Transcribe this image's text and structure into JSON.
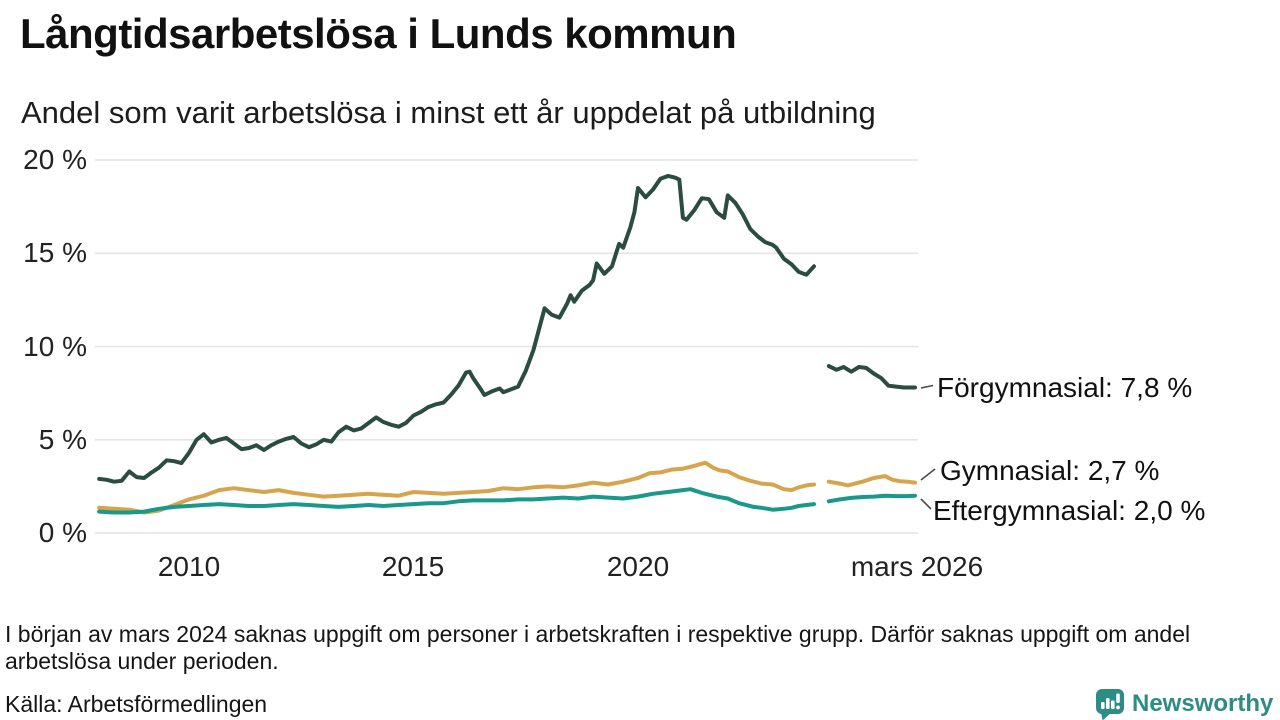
{
  "title": "Långtidsarbetslösa i Lunds kommun",
  "subtitle": "Andel som varit arbetslösa i minst ett år uppdelat på utbildning",
  "footnote": "I början av mars 2024 saknas uppgift om personer i arbetskraften i respektive grupp. Därför saknas uppgift om andel arbetslösa under perioden.",
  "source": "Källa: Arbetsförmedlingen",
  "logo": {
    "text": "Newsworthy",
    "color": "#2d8c83",
    "icon": "bar-chart-speech-bubble"
  },
  "colors": {
    "forgymnasial": "#2b4c41",
    "gymnasial": "#d7a44e",
    "eftergymnasial": "#18998b",
    "gridline": "#e4e4e4",
    "text": "#151515"
  },
  "chart_data": {
    "type": "line",
    "title": "Långtidsarbetslösa i Lunds kommun",
    "subtitle": "Andel som varit arbetslösa i minst ett år uppdelat på utbildning",
    "xlabel": "",
    "ylabel": "",
    "ylim": [
      0,
      20
    ],
    "xlim": [
      2008,
      2026.25
    ],
    "grid": "horizontal",
    "legend_position": "right-end-labels",
    "gap_note": "no data around mars 2024 (break in all series)",
    "yticks": [
      "0 %",
      "5 %",
      "10 %",
      "15 %",
      "20 %"
    ],
    "ytick_values": [
      0,
      5,
      10,
      15,
      20
    ],
    "xticks": [
      "2010",
      "2015",
      "2020",
      "mars 2026"
    ],
    "xtick_values": [
      2010,
      2015,
      2020,
      2026.17
    ],
    "series": [
      {
        "id": "forgymnasial",
        "name": "Förgymnasial",
        "label": "Förgymnasial: 7,8 %",
        "end_value": "7,8 %",
        "color": "#2b4c41",
        "segments": [
          [
            [
              2008.0,
              2.9
            ],
            [
              2008.17,
              2.85
            ],
            [
              2008.33,
              2.75
            ],
            [
              2008.5,
              2.8
            ],
            [
              2008.67,
              3.3
            ],
            [
              2008.83,
              3.0
            ],
            [
              2009.0,
              2.95
            ],
            [
              2009.17,
              3.25
            ],
            [
              2009.33,
              3.5
            ],
            [
              2009.5,
              3.9
            ],
            [
              2009.67,
              3.85
            ],
            [
              2009.83,
              3.75
            ],
            [
              2010.0,
              4.3
            ],
            [
              2010.17,
              5.0
            ],
            [
              2010.33,
              5.3
            ],
            [
              2010.5,
              4.85
            ],
            [
              2010.67,
              5.0
            ],
            [
              2010.83,
              5.1
            ],
            [
              2011.0,
              4.8
            ],
            [
              2011.17,
              4.5
            ],
            [
              2011.33,
              4.55
            ],
            [
              2011.5,
              4.7
            ],
            [
              2011.67,
              4.45
            ],
            [
              2011.83,
              4.7
            ],
            [
              2012.0,
              4.9
            ],
            [
              2012.17,
              5.05
            ],
            [
              2012.33,
              5.15
            ],
            [
              2012.5,
              4.8
            ],
            [
              2012.67,
              4.6
            ],
            [
              2012.83,
              4.75
            ],
            [
              2013.0,
              5.0
            ],
            [
              2013.17,
              4.9
            ],
            [
              2013.33,
              5.4
            ],
            [
              2013.5,
              5.7
            ],
            [
              2013.67,
              5.5
            ],
            [
              2013.83,
              5.6
            ],
            [
              2014.0,
              5.9
            ],
            [
              2014.17,
              6.2
            ],
            [
              2014.33,
              5.95
            ],
            [
              2014.5,
              5.8
            ],
            [
              2014.67,
              5.7
            ],
            [
              2014.83,
              5.9
            ],
            [
              2015.0,
              6.3
            ],
            [
              2015.17,
              6.5
            ],
            [
              2015.33,
              6.75
            ],
            [
              2015.5,
              6.9
            ],
            [
              2015.67,
              7.0
            ],
            [
              2015.83,
              7.4
            ],
            [
              2016.0,
              7.9
            ],
            [
              2016.17,
              8.6
            ],
            [
              2016.25,
              8.65
            ],
            [
              2016.33,
              8.3
            ],
            [
              2016.5,
              7.7
            ],
            [
              2016.58,
              7.4
            ],
            [
              2016.75,
              7.6
            ],
            [
              2016.92,
              7.75
            ],
            [
              2017.0,
              7.55
            ],
            [
              2017.17,
              7.7
            ],
            [
              2017.33,
              7.85
            ],
            [
              2017.5,
              8.7
            ],
            [
              2017.67,
              9.8
            ],
            [
              2017.83,
              11.25
            ],
            [
              2017.92,
              12.05
            ],
            [
              2018.08,
              11.7
            ],
            [
              2018.25,
              11.55
            ],
            [
              2018.42,
              12.3
            ],
            [
              2018.5,
              12.75
            ],
            [
              2018.58,
              12.4
            ],
            [
              2018.75,
              13.0
            ],
            [
              2018.92,
              13.3
            ],
            [
              2019.0,
              13.55
            ],
            [
              2019.08,
              14.45
            ],
            [
              2019.25,
              13.9
            ],
            [
              2019.42,
              14.3
            ],
            [
              2019.5,
              14.9
            ],
            [
              2019.58,
              15.5
            ],
            [
              2019.67,
              15.3
            ],
            [
              2019.83,
              16.4
            ],
            [
              2019.92,
              17.2
            ],
            [
              2020.0,
              18.5
            ],
            [
              2020.17,
              18.0
            ],
            [
              2020.33,
              18.4
            ],
            [
              2020.5,
              19.0
            ],
            [
              2020.67,
              19.15
            ],
            [
              2020.83,
              19.05
            ],
            [
              2020.92,
              18.95
            ],
            [
              2021.0,
              16.9
            ],
            [
              2021.08,
              16.8
            ],
            [
              2021.25,
              17.3
            ],
            [
              2021.42,
              17.95
            ],
            [
              2021.58,
              17.9
            ],
            [
              2021.75,
              17.2
            ],
            [
              2021.92,
              16.9
            ],
            [
              2022.0,
              18.1
            ],
            [
              2022.17,
              17.7
            ],
            [
              2022.33,
              17.1
            ],
            [
              2022.5,
              16.3
            ],
            [
              2022.67,
              15.9
            ],
            [
              2022.83,
              15.6
            ],
            [
              2023.0,
              15.45
            ],
            [
              2023.08,
              15.3
            ],
            [
              2023.25,
              14.7
            ],
            [
              2023.42,
              14.4
            ],
            [
              2023.58,
              14.0
            ],
            [
              2023.75,
              13.85
            ],
            [
              2023.92,
              14.3
            ]
          ],
          [
            [
              2024.25,
              8.95
            ],
            [
              2024.42,
              8.75
            ],
            [
              2024.58,
              8.9
            ],
            [
              2024.75,
              8.65
            ],
            [
              2024.92,
              8.9
            ],
            [
              2025.08,
              8.85
            ],
            [
              2025.25,
              8.55
            ],
            [
              2025.42,
              8.3
            ],
            [
              2025.58,
              7.9
            ],
            [
              2025.75,
              7.85
            ],
            [
              2025.92,
              7.8
            ],
            [
              2026.17,
              7.8
            ]
          ]
        ]
      },
      {
        "id": "gymnasial",
        "name": "Gymnasial",
        "label": "Gymnasial: 2,7 %",
        "end_value": "2,7 %",
        "color": "#d7a44e",
        "segments": [
          [
            [
              2008.0,
              1.35
            ],
            [
              2008.33,
              1.3
            ],
            [
              2008.67,
              1.25
            ],
            [
              2009.0,
              1.1
            ],
            [
              2009.33,
              1.2
            ],
            [
              2009.67,
              1.5
            ],
            [
              2010.0,
              1.8
            ],
            [
              2010.33,
              2.0
            ],
            [
              2010.67,
              2.3
            ],
            [
              2011.0,
              2.4
            ],
            [
              2011.33,
              2.3
            ],
            [
              2011.67,
              2.2
            ],
            [
              2012.0,
              2.3
            ],
            [
              2012.33,
              2.15
            ],
            [
              2012.67,
              2.05
            ],
            [
              2013.0,
              1.95
            ],
            [
              2013.33,
              2.0
            ],
            [
              2013.67,
              2.05
            ],
            [
              2014.0,
              2.1
            ],
            [
              2014.33,
              2.05
            ],
            [
              2014.67,
              2.0
            ],
            [
              2015.0,
              2.2
            ],
            [
              2015.33,
              2.15
            ],
            [
              2015.67,
              2.1
            ],
            [
              2016.0,
              2.15
            ],
            [
              2016.33,
              2.2
            ],
            [
              2016.67,
              2.25
            ],
            [
              2017.0,
              2.4
            ],
            [
              2017.33,
              2.35
            ],
            [
              2017.67,
              2.45
            ],
            [
              2018.0,
              2.5
            ],
            [
              2018.33,
              2.45
            ],
            [
              2018.67,
              2.55
            ],
            [
              2019.0,
              2.7
            ],
            [
              2019.33,
              2.6
            ],
            [
              2019.67,
              2.75
            ],
            [
              2020.0,
              2.95
            ],
            [
              2020.25,
              3.2
            ],
            [
              2020.5,
              3.25
            ],
            [
              2020.75,
              3.4
            ],
            [
              2021.0,
              3.45
            ],
            [
              2021.25,
              3.6
            ],
            [
              2021.5,
              3.77
            ],
            [
              2021.67,
              3.5
            ],
            [
              2021.83,
              3.35
            ],
            [
              2022.0,
              3.3
            ],
            [
              2022.25,
              3.0
            ],
            [
              2022.5,
              2.8
            ],
            [
              2022.75,
              2.65
            ],
            [
              2023.0,
              2.6
            ],
            [
              2023.25,
              2.35
            ],
            [
              2023.42,
              2.3
            ],
            [
              2023.58,
              2.45
            ],
            [
              2023.75,
              2.55
            ],
            [
              2023.92,
              2.6
            ]
          ],
          [
            [
              2024.25,
              2.75
            ],
            [
              2024.5,
              2.65
            ],
            [
              2024.67,
              2.55
            ],
            [
              2024.83,
              2.65
            ],
            [
              2025.0,
              2.75
            ],
            [
              2025.25,
              2.95
            ],
            [
              2025.5,
              3.05
            ],
            [
              2025.67,
              2.85
            ],
            [
              2025.83,
              2.78
            ],
            [
              2026.0,
              2.75
            ],
            [
              2026.17,
              2.7
            ]
          ]
        ]
      },
      {
        "id": "eftergymnasial",
        "name": "Eftergymnasial",
        "label": "Eftergymnasial: 2,0 %",
        "end_value": "2,0 %",
        "color": "#18998b",
        "segments": [
          [
            [
              2008.0,
              1.15
            ],
            [
              2008.33,
              1.1
            ],
            [
              2008.67,
              1.1
            ],
            [
              2009.0,
              1.15
            ],
            [
              2009.33,
              1.3
            ],
            [
              2009.67,
              1.4
            ],
            [
              2010.0,
              1.45
            ],
            [
              2010.33,
              1.5
            ],
            [
              2010.67,
              1.55
            ],
            [
              2011.0,
              1.5
            ],
            [
              2011.33,
              1.45
            ],
            [
              2011.67,
              1.45
            ],
            [
              2012.0,
              1.5
            ],
            [
              2012.33,
              1.55
            ],
            [
              2012.67,
              1.5
            ],
            [
              2013.0,
              1.45
            ],
            [
              2013.33,
              1.4
            ],
            [
              2013.67,
              1.45
            ],
            [
              2014.0,
              1.5
            ],
            [
              2014.33,
              1.45
            ],
            [
              2014.67,
              1.5
            ],
            [
              2015.0,
              1.55
            ],
            [
              2015.33,
              1.6
            ],
            [
              2015.67,
              1.6
            ],
            [
              2016.0,
              1.7
            ],
            [
              2016.33,
              1.75
            ],
            [
              2016.67,
              1.75
            ],
            [
              2017.0,
              1.75
            ],
            [
              2017.33,
              1.8
            ],
            [
              2017.67,
              1.8
            ],
            [
              2018.0,
              1.85
            ],
            [
              2018.33,
              1.9
            ],
            [
              2018.67,
              1.85
            ],
            [
              2019.0,
              1.95
            ],
            [
              2019.33,
              1.9
            ],
            [
              2019.67,
              1.85
            ],
            [
              2020.0,
              1.95
            ],
            [
              2020.33,
              2.1
            ],
            [
              2020.67,
              2.2
            ],
            [
              2021.0,
              2.3
            ],
            [
              2021.17,
              2.35
            ],
            [
              2021.42,
              2.15
            ],
            [
              2021.75,
              1.95
            ],
            [
              2022.0,
              1.85
            ],
            [
              2022.25,
              1.6
            ],
            [
              2022.58,
              1.4
            ],
            [
              2022.75,
              1.35
            ],
            [
              2023.0,
              1.25
            ],
            [
              2023.25,
              1.3
            ],
            [
              2023.42,
              1.35
            ],
            [
              2023.58,
              1.45
            ],
            [
              2023.75,
              1.5
            ],
            [
              2023.92,
              1.55
            ]
          ],
          [
            [
              2024.25,
              1.7
            ],
            [
              2024.5,
              1.8
            ],
            [
              2024.75,
              1.88
            ],
            [
              2025.0,
              1.93
            ],
            [
              2025.25,
              1.95
            ],
            [
              2025.5,
              2.0
            ],
            [
              2025.75,
              1.98
            ],
            [
              2026.0,
              1.98
            ],
            [
              2026.17,
              2.0
            ]
          ]
        ]
      }
    ]
  }
}
